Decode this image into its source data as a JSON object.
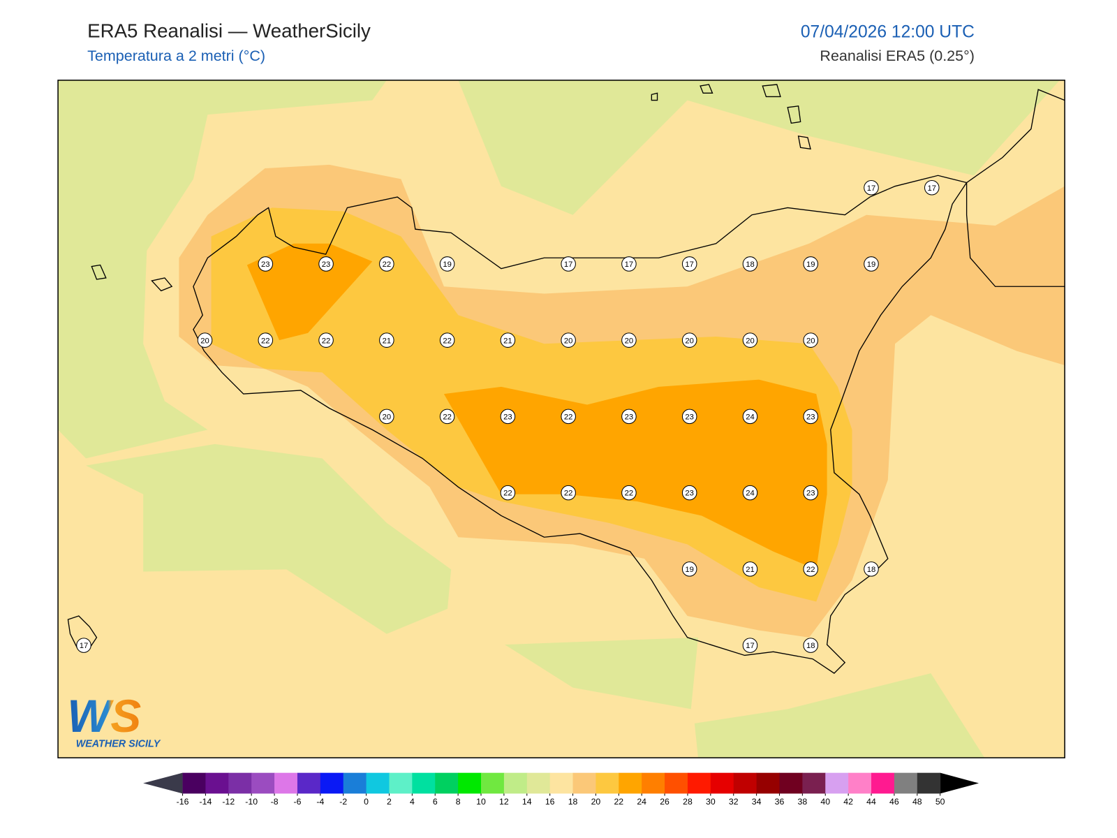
{
  "header": {
    "title": "ERA5 Reanalisi — WeatherSicily",
    "subtitle": "Temperatura a 2 metri (°C)",
    "datetime": "07/04/2026 12:00 UTC",
    "source": "Reanalisi ERA5 (0.25°)"
  },
  "station_grid": [
    [
      null,
      null,
      null,
      null,
      null,
      null,
      null,
      null,
      null,
      null,
      null,
      null,
      null,
      17,
      17
    ],
    [
      null,
      null,
      null,
      23,
      23,
      22,
      19,
      null,
      17,
      17,
      17,
      18,
      19,
      19,
      null
    ],
    [
      null,
      null,
      20,
      22,
      22,
      21,
      22,
      21,
      20,
      20,
      20,
      20,
      20,
      null,
      null
    ],
    [
      null,
      null,
      null,
      null,
      null,
      20,
      22,
      23,
      22,
      23,
      23,
      24,
      23,
      null,
      null
    ],
    [
      null,
      null,
      null,
      null,
      null,
      null,
      null,
      22,
      22,
      22,
      23,
      24,
      23,
      null,
      null
    ],
    [
      null,
      null,
      null,
      null,
      null,
      null,
      null,
      null,
      null,
      null,
      19,
      21,
      22,
      18,
      null
    ],
    [
      17,
      null,
      null,
      null,
      null,
      null,
      null,
      null,
      null,
      null,
      null,
      17,
      18,
      null,
      null
    ]
  ],
  "colorbar": {
    "levels": [
      -16,
      -14,
      -12,
      -10,
      -8,
      -6,
      -4,
      -2,
      0,
      2,
      4,
      6,
      8,
      10,
      12,
      14,
      16,
      18,
      20,
      22,
      24,
      26,
      28,
      30,
      32,
      34,
      36,
      38,
      40,
      42,
      44,
      46,
      48,
      50
    ],
    "colors": [
      "#4a0060",
      "#6a1090",
      "#7b2fa6",
      "#9b4cc0",
      "#dd77e8",
      "#5a28c8",
      "#0a19f5",
      "#1a7ed8",
      "#10c8e0",
      "#5ef0c8",
      "#00e0a0",
      "#00d060",
      "#00e800",
      "#70e840",
      "#c0ec88",
      "#e0e898",
      "#fde4a0",
      "#fbc878",
      "#fdc840",
      "#ffa500",
      "#ff7f00",
      "#ff5000",
      "#ff1a00",
      "#e60000",
      "#c00000",
      "#960000",
      "#700020",
      "#7a2050",
      "#d7a0f0",
      "#ff80c8",
      "#ff1a90",
      "#808080",
      "#333333"
    ],
    "under_color": "#3a3a4a",
    "over_color": "#000000"
  },
  "logo": {
    "text": "WS",
    "subtext": "WEATHER SICILY"
  }
}
